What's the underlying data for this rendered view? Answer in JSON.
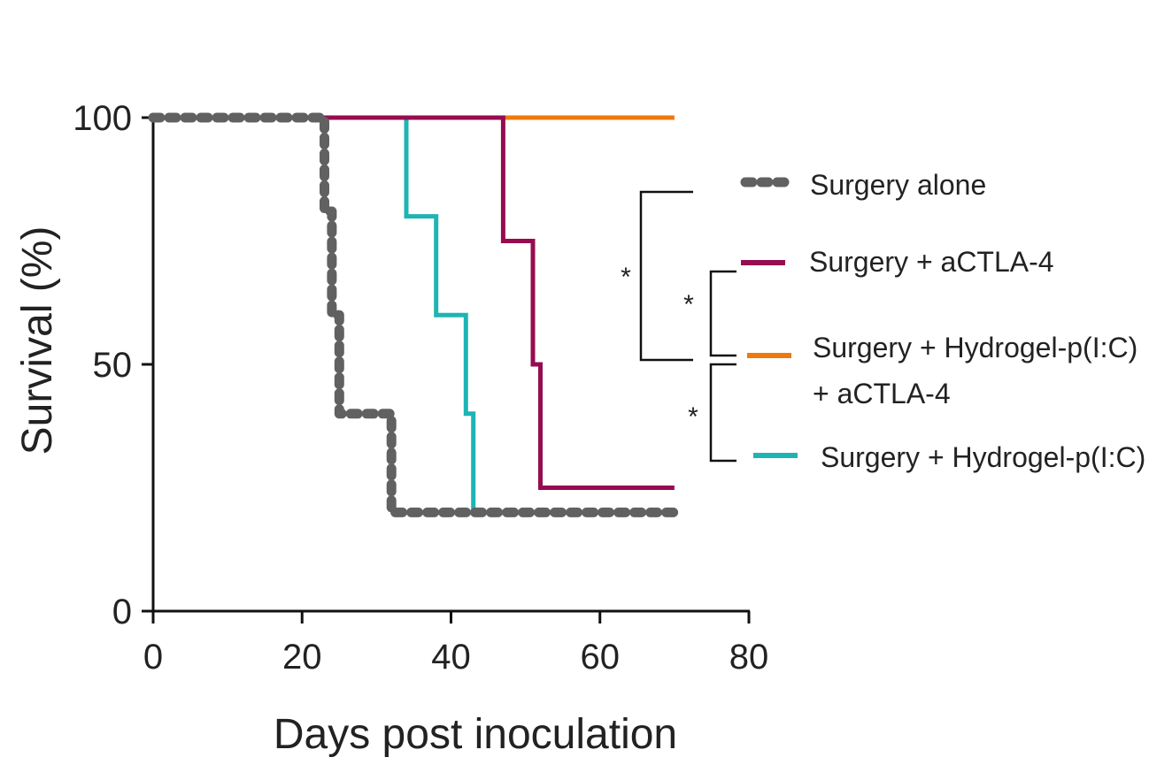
{
  "chart_data": {
    "type": "line",
    "subtype": "kaplan-meier",
    "title": "",
    "xlabel": "Days post inoculation",
    "ylabel": "Survival (%)",
    "xlim": [
      0,
      80
    ],
    "ylim": [
      0,
      100
    ],
    "xticks": [
      0,
      20,
      40,
      60,
      80
    ],
    "yticks": [
      0,
      50,
      100
    ],
    "legend_position": "right",
    "series": [
      {
        "name": "Surgery alone",
        "color": "#616161",
        "style": "dashed",
        "x": [
          0,
          23,
          23,
          24,
          24,
          25,
          25,
          32,
          32,
          70
        ],
        "y": [
          100,
          100,
          81,
          81,
          60,
          60,
          40,
          40,
          20,
          20
        ]
      },
      {
        "name": "Surgery + aCTLA-4",
        "color": "#960c50",
        "style": "solid",
        "x": [
          0,
          47,
          47,
          51,
          51,
          52,
          52,
          70
        ],
        "y": [
          100,
          100,
          75,
          75,
          50,
          50,
          25,
          25
        ]
      },
      {
        "name": "Surgery + Hydrogel-p(I:C)",
        "name_line2": "+ aCTLA-4",
        "color": "#f0780f",
        "style": "solid",
        "x": [
          0,
          70
        ],
        "y": [
          100,
          100
        ]
      },
      {
        "name": "Surgery + Hydrogel-p(I:C)",
        "color": "#1eb4b4",
        "style": "solid",
        "x": [
          0,
          34,
          34,
          38,
          38,
          42,
          42,
          43,
          43,
          70
        ],
        "y": [
          100,
          100,
          80,
          80,
          60,
          60,
          40,
          40,
          20,
          20
        ]
      }
    ],
    "annotations": [
      {
        "label": "*",
        "compares": [
          "Surgery alone",
          "Surgery + Hydrogel-p(I:C) + aCTLA-4"
        ]
      },
      {
        "label": "*",
        "compares": [
          "Surgery + aCTLA-4",
          "Surgery + Hydrogel-p(I:C) + aCTLA-4"
        ]
      },
      {
        "label": "*",
        "compares": [
          "Surgery + Hydrogel-p(I:C) + aCTLA-4",
          "Surgery + Hydrogel-p(I:C)"
        ]
      }
    ]
  }
}
